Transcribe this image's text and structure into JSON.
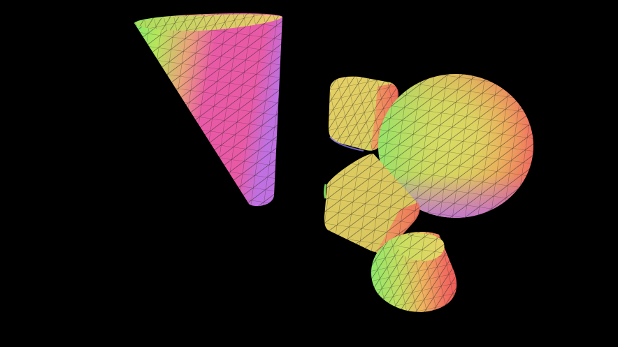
{
  "scene": {
    "background": "#000000",
    "wireframe_color": "#1a1a1a",
    "shading": "normal-map",
    "palette": {
      "magenta": "#e95aa6",
      "pink": "#f07590",
      "orange": "#f6a55a",
      "yellow": "#e9d267",
      "lime": "#b8e55c",
      "green": "#7fe86c",
      "red": "#f0605a",
      "violet": "#c070e0"
    },
    "objects": [
      {
        "kind": "cone"
      },
      {
        "kind": "rounded-cube"
      },
      {
        "kind": "ellipsoid"
      },
      {
        "kind": "rounded-cube"
      },
      {
        "kind": "truncated-cone"
      }
    ]
  }
}
